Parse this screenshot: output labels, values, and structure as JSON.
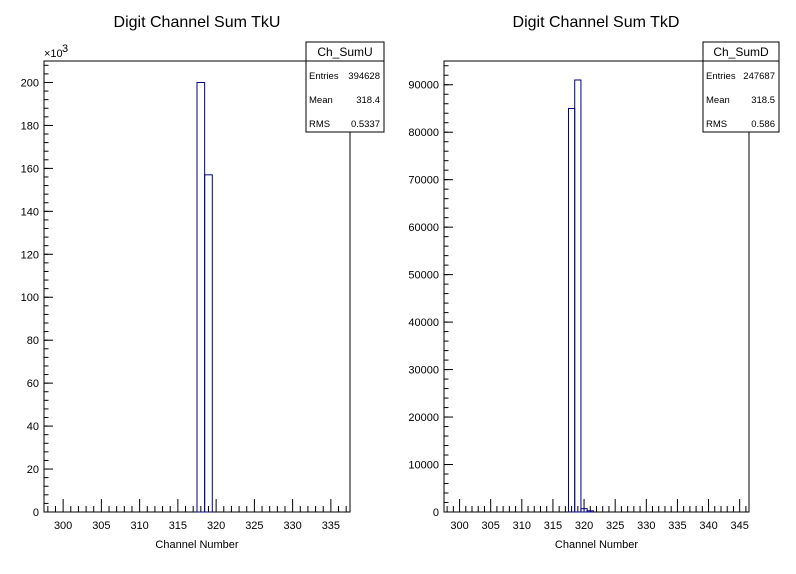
{
  "chart_data": [
    {
      "type": "bar",
      "title": "Digit Channel Sum TkU",
      "xlabel": "Channel Number",
      "ylabel": "",
      "xlim": [
        297.5,
        337.5
      ],
      "ylim": [
        0,
        210
      ],
      "y_multiplier": "×10",
      "y_multiplier_exp": "3",
      "xticks": [
        300,
        305,
        310,
        315,
        320,
        325,
        330,
        335
      ],
      "yticks": [
        0,
        20,
        40,
        60,
        80,
        100,
        120,
        140,
        160,
        180,
        200
      ],
      "bins": [
        {
          "x0": 317.5,
          "x1": 318.5,
          "value": 200
        },
        {
          "x0": 318.5,
          "x1": 319.5,
          "value": 157
        }
      ],
      "legend": {
        "name": "Ch_SumU",
        "rows": [
          {
            "label": "Entries",
            "value": "394628"
          },
          {
            "label": "Mean",
            "value": "318.4"
          },
          {
            "label": "RMS",
            "value": "0.5337"
          }
        ]
      }
    },
    {
      "type": "bar",
      "title": "Digit Channel Sum TkD",
      "xlabel": "Channel Number",
      "ylabel": "",
      "xlim": [
        297.5,
        346.5
      ],
      "ylim": [
        0,
        95000
      ],
      "xticks": [
        300,
        305,
        310,
        315,
        320,
        325,
        330,
        335,
        340,
        345
      ],
      "yticks": [
        0,
        10000,
        20000,
        30000,
        40000,
        50000,
        60000,
        70000,
        80000,
        90000
      ],
      "bins": [
        {
          "x0": 317.5,
          "x1": 318.5,
          "value": 85000
        },
        {
          "x0": 318.5,
          "x1": 319.5,
          "value": 91000
        },
        {
          "x0": 319.5,
          "x1": 320.5,
          "value": 700
        },
        {
          "x0": 320.5,
          "x1": 321.5,
          "value": 250
        }
      ],
      "legend": {
        "name": "Ch_SumD",
        "rows": [
          {
            "label": "Entries",
            "value": "247687"
          },
          {
            "label": "Mean",
            "value": "318.5"
          },
          {
            "label": "RMS",
            "value": "0.586"
          }
        ]
      }
    }
  ]
}
